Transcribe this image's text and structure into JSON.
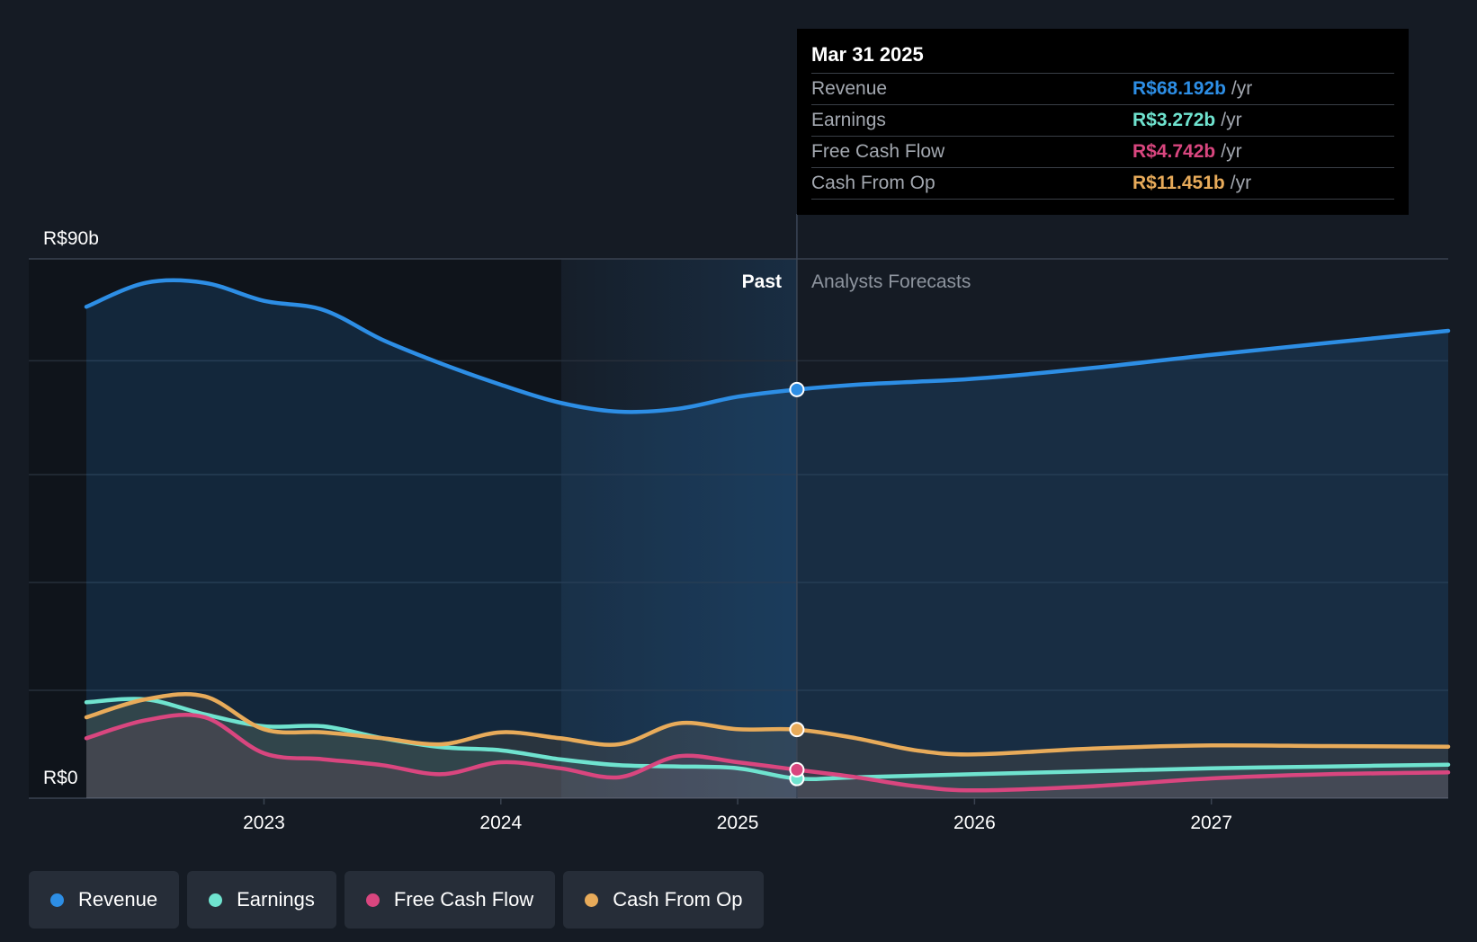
{
  "chart_data": {
    "type": "area",
    "x_axis": {
      "ticks": [
        "2023",
        "2024",
        "2025",
        "2026",
        "2027"
      ]
    },
    "y_axis": {
      "top_label": "R$90b",
      "bottom_label": "R$0",
      "ylim": [
        0,
        90
      ]
    },
    "period_labels": {
      "past": "Past",
      "forecast": "Analysts Forecasts"
    },
    "split_date": 2025.25,
    "series": [
      {
        "name": "Revenue",
        "color": "#2d8ee5",
        "points": [
          [
            2022.25,
            82
          ],
          [
            2022.5,
            86
          ],
          [
            2022.75,
            86
          ],
          [
            2023,
            83
          ],
          [
            2023.25,
            81.5
          ],
          [
            2023.5,
            76.5
          ],
          [
            2023.75,
            72.5
          ],
          [
            2024,
            69
          ],
          [
            2024.25,
            66
          ],
          [
            2024.5,
            64.5
          ],
          [
            2024.75,
            65
          ],
          [
            2025,
            67
          ],
          [
            2025.25,
            68.192
          ],
          [
            2025.5,
            69
          ],
          [
            2025.75,
            69.5
          ],
          [
            2026,
            70
          ],
          [
            2026.5,
            71.8
          ],
          [
            2027,
            74
          ],
          [
            2027.5,
            76
          ],
          [
            2028,
            78
          ]
        ]
      },
      {
        "name": "Earnings",
        "color": "#6fe3cf",
        "points": [
          [
            2022.25,
            16
          ],
          [
            2022.5,
            16.5
          ],
          [
            2022.75,
            14
          ],
          [
            2023,
            12
          ],
          [
            2023.25,
            12
          ],
          [
            2023.5,
            10
          ],
          [
            2023.75,
            8.5
          ],
          [
            2024,
            8
          ],
          [
            2024.25,
            6.5
          ],
          [
            2024.5,
            5.5
          ],
          [
            2024.75,
            5.3
          ],
          [
            2025,
            5
          ],
          [
            2025.25,
            3.272
          ],
          [
            2025.5,
            3.5
          ],
          [
            2026,
            4
          ],
          [
            2026.5,
            4.5
          ],
          [
            2027,
            5
          ],
          [
            2027.5,
            5.3
          ],
          [
            2028,
            5.6
          ]
        ]
      },
      {
        "name": "Free Cash Flow",
        "color": "#d9467f",
        "points": [
          [
            2022.25,
            10
          ],
          [
            2022.5,
            13
          ],
          [
            2022.75,
            13.5
          ],
          [
            2023,
            7.5
          ],
          [
            2023.25,
            6.5
          ],
          [
            2023.5,
            5.5
          ],
          [
            2023.75,
            4
          ],
          [
            2024,
            6
          ],
          [
            2024.25,
            5
          ],
          [
            2024.5,
            3.5
          ],
          [
            2024.75,
            7
          ],
          [
            2025,
            6
          ],
          [
            2025.25,
            4.742
          ],
          [
            2025.5,
            3.5
          ],
          [
            2025.75,
            2
          ],
          [
            2026,
            1.3
          ],
          [
            2026.5,
            2
          ],
          [
            2027,
            3.3
          ],
          [
            2027.5,
            4
          ],
          [
            2028,
            4.3
          ]
        ]
      },
      {
        "name": "Cash From Op",
        "color": "#e8ab5a",
        "points": [
          [
            2022.25,
            13.5
          ],
          [
            2022.5,
            16.5
          ],
          [
            2022.75,
            17
          ],
          [
            2023,
            11.5
          ],
          [
            2023.25,
            11
          ],
          [
            2023.5,
            10
          ],
          [
            2023.75,
            9
          ],
          [
            2024,
            11
          ],
          [
            2024.25,
            10
          ],
          [
            2024.5,
            9
          ],
          [
            2024.75,
            12.5
          ],
          [
            2025,
            11.5
          ],
          [
            2025.25,
            11.451
          ],
          [
            2025.5,
            10
          ],
          [
            2025.75,
            8
          ],
          [
            2026,
            7.3
          ],
          [
            2026.5,
            8.3
          ],
          [
            2027,
            8.8
          ],
          [
            2027.5,
            8.7
          ],
          [
            2028,
            8.6
          ]
        ]
      }
    ]
  },
  "tooltip": {
    "date": "Mar 31 2025",
    "unit": "/yr",
    "rows": [
      {
        "label": "Revenue",
        "value": "R$68.192b",
        "color": "#2d8ee5"
      },
      {
        "label": "Earnings",
        "value": "R$3.272b",
        "color": "#6fe3cf"
      },
      {
        "label": "Free Cash Flow",
        "value": "R$4.742b",
        "color": "#d9467f"
      },
      {
        "label": "Cash From Op",
        "value": "R$11.451b",
        "color": "#e8ab5a"
      }
    ]
  },
  "legend": [
    {
      "label": "Revenue",
      "color": "#2d8ee5"
    },
    {
      "label": "Earnings",
      "color": "#6fe3cf"
    },
    {
      "label": "Free Cash Flow",
      "color": "#d9467f"
    },
    {
      "label": "Cash From Op",
      "color": "#e8ab5a"
    }
  ]
}
